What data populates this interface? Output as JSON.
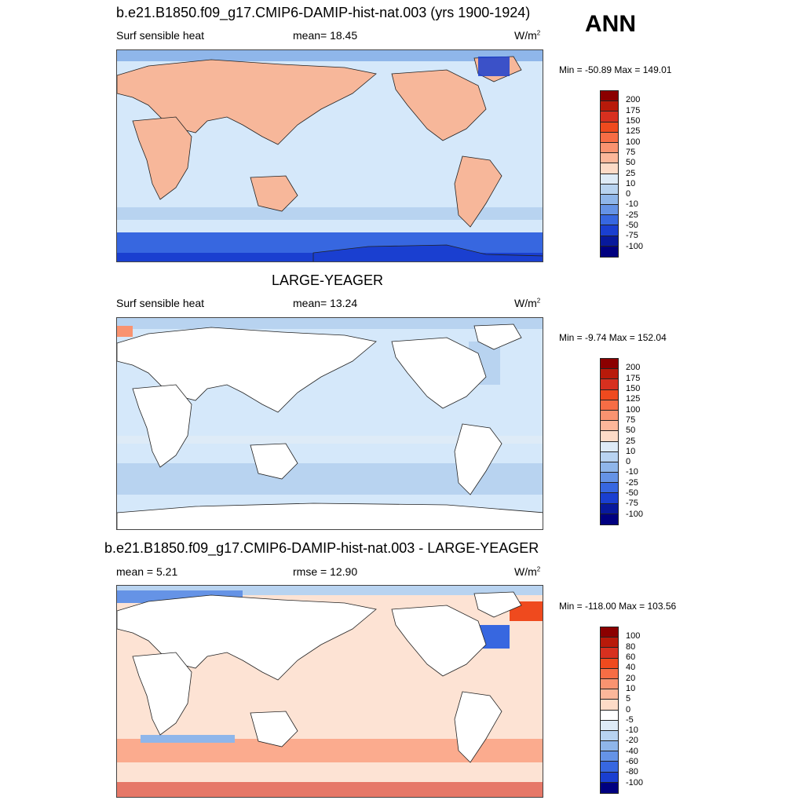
{
  "corner_label": "ANN",
  "panels": [
    {
      "title": "b.e21.B1850.f09_g17.CMIP6-DAMIP-hist-nat.003 (yrs 1900-1924)",
      "left_label": "Surf sensible heat",
      "center_label": "mean=  18.45",
      "units": "W/m",
      "units_sup": "2",
      "minmax": "Min = -50.89 Max = 149.01",
      "colorbar_ticks": [
        "200",
        "175",
        "150",
        "125",
        "100",
        "75",
        "50",
        "25",
        "10",
        "0",
        "-10",
        "-25",
        "-50",
        "-75",
        "-100"
      ],
      "land_color": "#f7b79a",
      "ocean_color": "#d5e8fa"
    },
    {
      "title": "LARGE-YEAGER",
      "left_label": "Surf sensible heat",
      "center_label": "mean=  13.24",
      "units": "W/m",
      "units_sup": "2",
      "minmax": "Min =  -9.74 Max = 152.04",
      "colorbar_ticks": [
        "200",
        "175",
        "150",
        "125",
        "100",
        "75",
        "50",
        "25",
        "10",
        "0",
        "-10",
        "-25",
        "-50",
        "-75",
        "-100"
      ],
      "land_color": "#ffffff",
      "ocean_color": "#d5e8fa"
    },
    {
      "title": "b.e21.B1850.f09_g17.CMIP6-DAMIP-hist-nat.003 - LARGE-YEAGER",
      "left_label": "mean =   5.21",
      "center_label": "rmse =  12.90",
      "units": "W/m",
      "units_sup": "2",
      "minmax": "Min = -118.00 Max = 103.56",
      "colorbar_ticks": [
        "100",
        "80",
        "60",
        "40",
        "20",
        "10",
        "5",
        "0",
        "-5",
        "-10",
        "-20",
        "-40",
        "-60",
        "-80",
        "-100"
      ],
      "land_color": "#ffffff",
      "ocean_color": "#fde3d4"
    }
  ],
  "colorbar_colors": {
    "absolute": [
      "#8b0000",
      "#b81a0a",
      "#d7301f",
      "#ef4a1e",
      "#f76d45",
      "#f99370",
      "#fcb79a",
      "#fddbc7",
      "#deebf7",
      "#b8d3f0",
      "#8fb6ea",
      "#6593e6",
      "#3767e0",
      "#1a3fd0",
      "#08199c",
      "#000080"
    ],
    "difference": [
      "#8b0000",
      "#b81a0a",
      "#d7301f",
      "#ef4a1e",
      "#f76d45",
      "#f99370",
      "#fcb79a",
      "#fddbc7",
      "#ffffff",
      "#deebf7",
      "#b8d3f0",
      "#8fb6ea",
      "#6593e6",
      "#3767e0",
      "#1a3fd0",
      "#000080"
    ]
  }
}
